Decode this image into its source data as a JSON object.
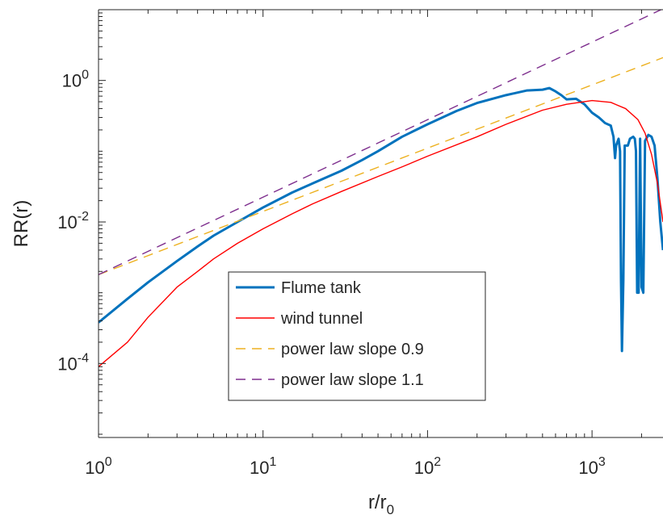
{
  "chart_data": {
    "type": "line",
    "title": "",
    "xlabel": "r/r",
    "xlabel_sub": "0",
    "ylabel": "RR(r)",
    "xscale": "log",
    "yscale": "log",
    "xlim": [
      1,
      2700
    ],
    "ylim": [
      9e-06,
      10
    ],
    "grid": false,
    "legend_position": "lower-center",
    "x_ticks": [
      {
        "value": 1,
        "base": "10",
        "exp": "0"
      },
      {
        "value": 10,
        "base": "10",
        "exp": "1"
      },
      {
        "value": 100,
        "base": "10",
        "exp": "2"
      },
      {
        "value": 1000,
        "base": "10",
        "exp": "3"
      }
    ],
    "y_ticks": [
      {
        "value": 0.0001,
        "base": "10",
        "exp": "-4"
      },
      {
        "value": 0.01,
        "base": "10",
        "exp": "-2"
      },
      {
        "value": 1,
        "base": "10",
        "exp": "0"
      }
    ],
    "series": [
      {
        "name": "Flume tank",
        "color": "#0072BD",
        "style": "solid",
        "width": 3,
        "points": [
          [
            1,
            0.00038
          ],
          [
            1.5,
            0.00082
          ],
          [
            2,
            0.0014
          ],
          [
            3,
            0.0028
          ],
          [
            4,
            0.0045
          ],
          [
            5,
            0.0064
          ],
          [
            7,
            0.01
          ],
          [
            10,
            0.016
          ],
          [
            15,
            0.026
          ],
          [
            20,
            0.035
          ],
          [
            30,
            0.053
          ],
          [
            40,
            0.075
          ],
          [
            50,
            0.1
          ],
          [
            70,
            0.16
          ],
          [
            100,
            0.24
          ],
          [
            150,
            0.37
          ],
          [
            200,
            0.48
          ],
          [
            300,
            0.62
          ],
          [
            400,
            0.72
          ],
          [
            500,
            0.74
          ],
          [
            550,
            0.78
          ],
          [
            600,
            0.7
          ],
          [
            650,
            0.62
          ],
          [
            700,
            0.54
          ],
          [
            800,
            0.55
          ],
          [
            900,
            0.46
          ],
          [
            1000,
            0.35
          ],
          [
            1100,
            0.3
          ],
          [
            1200,
            0.25
          ],
          [
            1300,
            0.23
          ],
          [
            1350,
            0.16
          ],
          [
            1380,
            0.08
          ],
          [
            1400,
            0.12
          ],
          [
            1450,
            0.15
          ],
          [
            1480,
            0.1
          ],
          [
            1500,
            0.0015
          ],
          [
            1520,
            0.00015
          ],
          [
            1550,
            0.0015
          ],
          [
            1580,
            0.12
          ],
          [
            1650,
            0.12
          ],
          [
            1700,
            0.15
          ],
          [
            1780,
            0.16
          ],
          [
            1820,
            0.15
          ],
          [
            1850,
            0.1
          ],
          [
            1880,
            0.001
          ],
          [
            1920,
            0.001
          ],
          [
            1960,
            0.15
          ],
          [
            2000,
            0.0012
          ],
          [
            2050,
            0.001
          ],
          [
            2100,
            0.14
          ],
          [
            2200,
            0.17
          ],
          [
            2300,
            0.16
          ],
          [
            2400,
            0.12
          ],
          [
            2500,
            0.04
          ],
          [
            2600,
            0.01
          ],
          [
            2700,
            0.004
          ]
        ]
      },
      {
        "name": "wind tunnel",
        "color": "#FF0000",
        "style": "solid",
        "width": 1.4,
        "points": [
          [
            1,
            9e-05
          ],
          [
            1.5,
            0.0002
          ],
          [
            2,
            0.00045
          ],
          [
            3,
            0.0012
          ],
          [
            4,
            0.002
          ],
          [
            5,
            0.003
          ],
          [
            7,
            0.005
          ],
          [
            10,
            0.008
          ],
          [
            15,
            0.013
          ],
          [
            20,
            0.018
          ],
          [
            30,
            0.027
          ],
          [
            50,
            0.044
          ],
          [
            70,
            0.06
          ],
          [
            100,
            0.085
          ],
          [
            200,
            0.16
          ],
          [
            300,
            0.24
          ],
          [
            500,
            0.38
          ],
          [
            700,
            0.46
          ],
          [
            1000,
            0.52
          ],
          [
            1300,
            0.49
          ],
          [
            1600,
            0.4
          ],
          [
            1900,
            0.28
          ],
          [
            2100,
            0.18
          ],
          [
            2300,
            0.09
          ],
          [
            2500,
            0.035
          ],
          [
            2700,
            0.01
          ]
        ]
      },
      {
        "name": "power law slope 0.9",
        "color": "#EDB120",
        "style": "dashed",
        "width": 1.4,
        "points": [
          [
            1,
            0.0018
          ],
          [
            2700,
            2.1
          ]
        ]
      },
      {
        "name": "power law slope 1.1",
        "color": "#7E2F8E",
        "style": "dashed",
        "width": 1.4,
        "points": [
          [
            1,
            0.0018
          ],
          [
            2700,
            10.3
          ]
        ]
      }
    ]
  }
}
